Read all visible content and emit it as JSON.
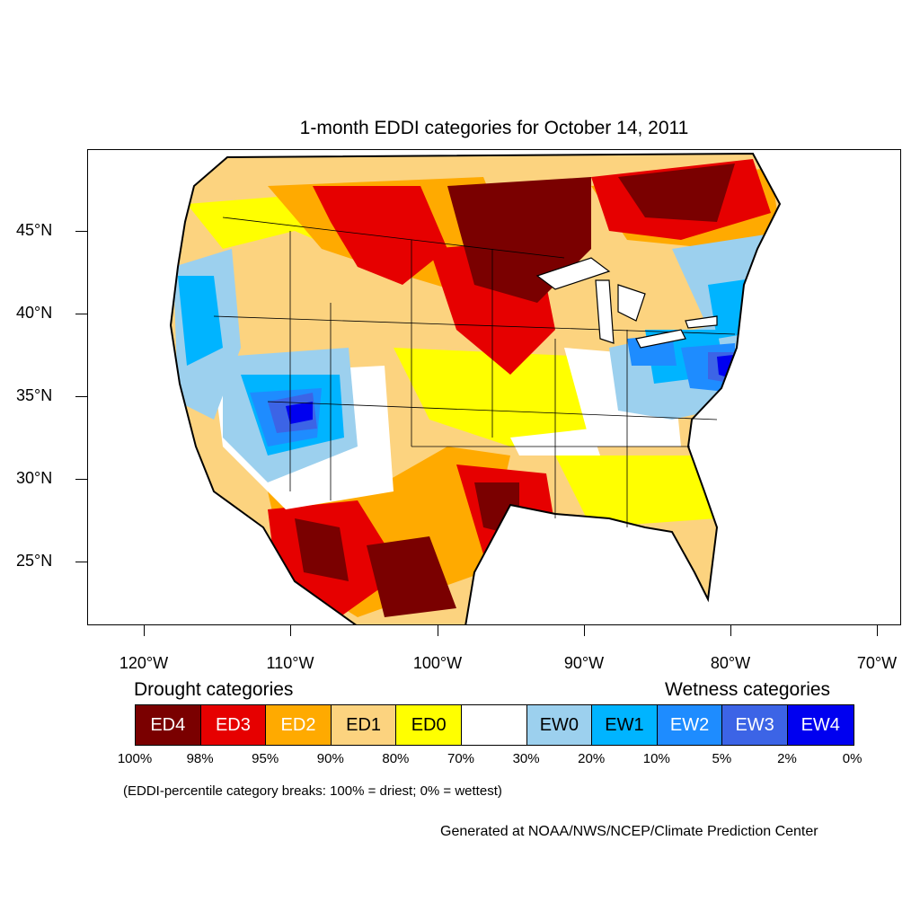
{
  "title": "1-month EDDI categories for October 14, 2011",
  "lat_labels": [
    "45°N",
    "40°N",
    "35°N",
    "30°N",
    "25°N"
  ],
  "lon_labels": [
    "120°W",
    "110°W",
    "100°W",
    "90°W",
    "80°W",
    "70°W"
  ],
  "legend": {
    "drought_heading": "Drought categories",
    "wetness_heading": "Wetness categories",
    "categories": [
      {
        "label": "ED4",
        "color": "#7a0000",
        "text_color": "#ffffff"
      },
      {
        "label": "ED3",
        "color": "#e60000",
        "text_color": "#ffffff"
      },
      {
        "label": "ED2",
        "color": "#ffaa00",
        "text_color": "#ffffff"
      },
      {
        "label": "ED1",
        "color": "#fcd37f",
        "text_color": "#000000"
      },
      {
        "label": "ED0",
        "color": "#ffff00",
        "text_color": "#000000"
      },
      {
        "label": "",
        "color": "#ffffff",
        "text_color": "#000000"
      },
      {
        "label": "EW0",
        "color": "#9cd0ee",
        "text_color": "#000000"
      },
      {
        "label": "EW1",
        "color": "#00b4ff",
        "text_color": "#000000"
      },
      {
        "label": "EW2",
        "color": "#1e8cff",
        "text_color": "#ffffff"
      },
      {
        "label": "EW3",
        "color": "#3c64e6",
        "text_color": "#ffffff"
      },
      {
        "label": "EW4",
        "color": "#0000f0",
        "text_color": "#ffffff"
      }
    ],
    "percent_breaks": [
      "100%",
      "98%",
      "95%",
      "90%",
      "80%",
      "70%",
      "30%",
      "20%",
      "10%",
      "5%",
      "2%",
      "0%"
    ]
  },
  "note": "(EDDI-percentile category breaks: 100% = driest; 0% = wettest)",
  "credit": "Generated at NOAA/NWS/NCEP/Climate Prediction Center"
}
